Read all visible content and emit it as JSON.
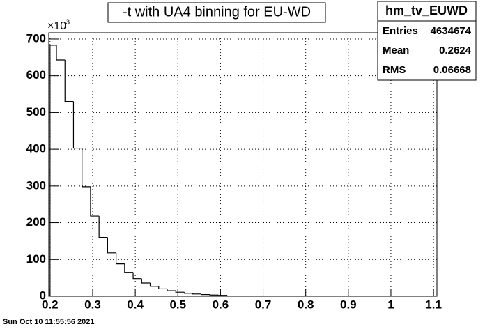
{
  "chart_data": {
    "type": "histogram",
    "title": "-t with UA4 binning for EU-WD",
    "bins": [
      0.2,
      0.215,
      0.235,
      0.255,
      0.275,
      0.295,
      0.315,
      0.335,
      0.355,
      0.375,
      0.395,
      0.415,
      0.435,
      0.455,
      0.475,
      0.495,
      0.515,
      0.535,
      0.555,
      0.575,
      0.595,
      0.615
    ],
    "values": [
      683,
      643,
      530,
      403,
      298,
      218,
      160,
      118,
      88,
      65,
      48,
      36,
      27,
      20,
      15,
      11,
      8,
      6,
      4.5,
      3.3,
      2.4
    ],
    "color": "#000000",
    "xlim": [
      0.197,
      1.108
    ],
    "xticks": [
      0.2,
      0.3,
      0.4,
      0.5,
      0.6,
      0.7,
      0.8,
      0.9,
      1,
      1.1
    ],
    "ylim": [
      0,
      717
    ],
    "yticks": [
      0,
      100,
      200,
      300,
      400,
      500,
      600,
      700
    ],
    "y_multiplier_base": "×10",
    "y_multiplier_exponent": 3,
    "grid": true,
    "stats": {
      "name": "hm_tv_EUWD",
      "rows": [
        {
          "label": "Entries",
          "value": 4634674
        },
        {
          "label": "Mean",
          "value": 0.2624
        },
        {
          "label": "RMS",
          "value": 0.06668
        }
      ]
    },
    "timestamp": "Sun Oct 10 11:55:56 2021"
  }
}
